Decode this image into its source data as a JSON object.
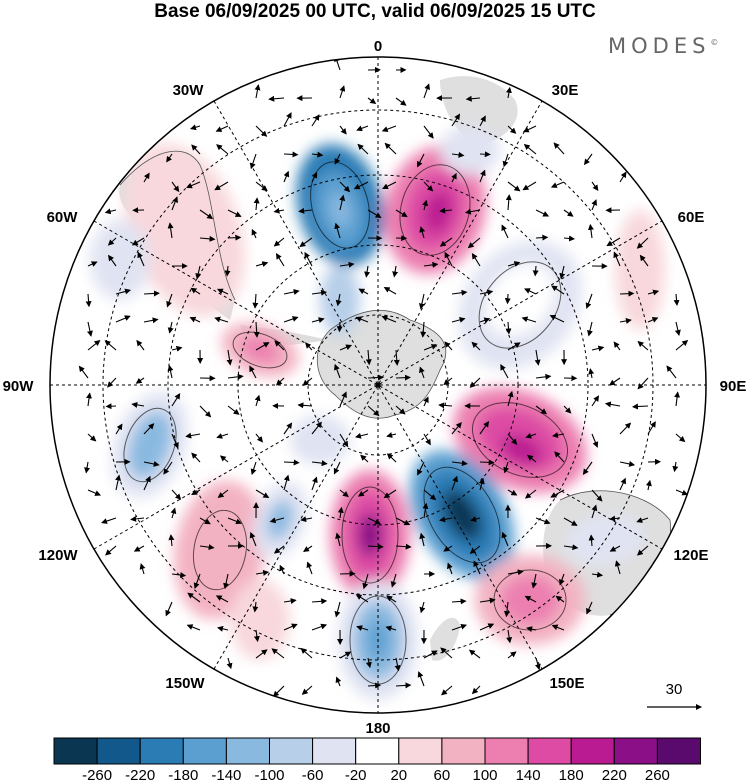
{
  "title": "Base 06/09/2025 00 UTC, valid 06/09/2025 15 UTC",
  "brand": "MODES",
  "brand_mark": "©",
  "longitude_labels": [
    "0",
    "30E",
    "60E",
    "90E",
    "120E",
    "150E",
    "180",
    "150W",
    "120W",
    "90W",
    "60W",
    "30W"
  ],
  "reference_vector": {
    "label": "30"
  },
  "colorbar": {
    "ticks": [
      "-260",
      "-220",
      "-180",
      "-140",
      "-100",
      "-60",
      "-20",
      "20",
      "60",
      "100",
      "140",
      "180",
      "220",
      "260"
    ],
    "colors": [
      "#0b3652",
      "#12588a",
      "#2b7bb5",
      "#5a9fd0",
      "#8ab9e0",
      "#b7cfe9",
      "#e0e3f2",
      "#ffffff",
      "#f8d8dc",
      "#f3b2c2",
      "#ec7fb0",
      "#dd4ba4",
      "#bb1b92",
      "#8b0f87",
      "#5a0a6c"
    ]
  },
  "colors": {
    "land": "#d9d9d9",
    "coast": "#555555"
  }
}
